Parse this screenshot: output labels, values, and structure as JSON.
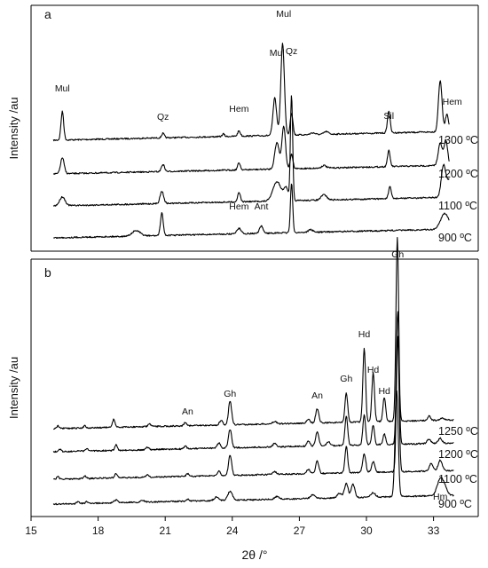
{
  "chart_data": [
    {
      "type": "line",
      "panel_label": "a",
      "ylabel": "Intensity /au",
      "x_units": "2θ /°",
      "xlim": [
        15,
        35
      ],
      "series": [
        {
          "name": "1300 ºC"
        },
        {
          "name": "1200 ºC"
        },
        {
          "name": "1100 ºC"
        },
        {
          "name": "900 ºC"
        }
      ],
      "annotations": [
        {
          "text": "Mul",
          "x": 16.4
        },
        {
          "text": "Qz",
          "x": 20.9
        },
        {
          "text": "Hem",
          "x": 24.3
        },
        {
          "text": "Mul",
          "x": 26.0
        },
        {
          "text": "Mul",
          "x": 26.3
        },
        {
          "text": "Qz",
          "x": 26.65
        },
        {
          "text": "Sil",
          "x": 31.0
        },
        {
          "text": "Hem",
          "x": 33.6
        },
        {
          "text": "Hem",
          "x": 24.3
        },
        {
          "text": "Ant",
          "x": 25.3
        }
      ]
    },
    {
      "type": "line",
      "panel_label": "b",
      "ylabel": "Intensity /au",
      "xlabel": "2θ /°",
      "xlim": [
        15,
        35
      ],
      "x_ticks": [
        15,
        18,
        21,
        24,
        27,
        30,
        33
      ],
      "series": [
        {
          "name": "1250 ºC"
        },
        {
          "name": "1200 ºC"
        },
        {
          "name": "1100 ºC"
        },
        {
          "name": "900 ºC"
        }
      ],
      "annotations": [
        {
          "text": "An",
          "x": 22.0
        },
        {
          "text": "Gh",
          "x": 23.9
        },
        {
          "text": "An",
          "x": 27.8
        },
        {
          "text": "Gh",
          "x": 29.1
        },
        {
          "text": "Hd",
          "x": 29.9
        },
        {
          "text": "Hd",
          "x": 30.3
        },
        {
          "text": "Hd",
          "x": 30.8
        },
        {
          "text": "Gh",
          "x": 31.4
        },
        {
          "text": "Hm",
          "x": 33.3
        }
      ]
    }
  ]
}
